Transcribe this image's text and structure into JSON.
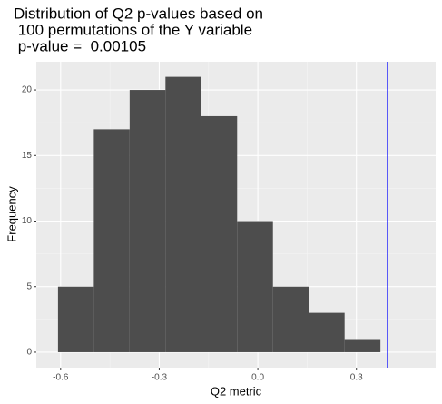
{
  "chart_data": {
    "type": "histogram",
    "title": [
      "Distribution of Q2 p-values based on",
      " 100 permutations of the Y variable",
      " p-value =  0.00105"
    ],
    "x_label": "Q2 metric",
    "y_label": "Frequency",
    "bins": [
      -0.608,
      -0.499,
      -0.39,
      -0.281,
      -0.172,
      -0.063,
      0.046,
      0.155,
      0.264,
      0.373
    ],
    "values": [
      5,
      17,
      20,
      21,
      18,
      10,
      5,
      3,
      1
    ],
    "color": "#4d4d4d",
    "xlim": [
      -0.674,
      0.541
    ],
    "ylim": [
      -1.18,
      22.15
    ],
    "xticks": [
      {
        "value": -0.6,
        "label": "-0.6"
      },
      {
        "value": -0.3,
        "label": "-0.3"
      },
      {
        "value": 0,
        "label": "0.0"
      },
      {
        "value": 0.3,
        "label": "0.3"
      }
    ],
    "yticks": [
      0,
      5,
      10,
      15,
      20
    ],
    "grid": true,
    "vline": {
      "x": 0.395,
      "color": "#0000ff"
    }
  }
}
